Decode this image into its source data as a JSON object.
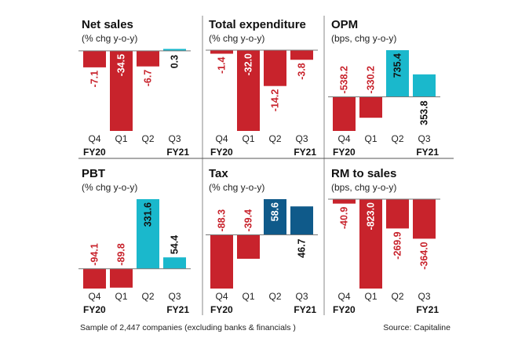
{
  "colors": {
    "negative": "#c8232c",
    "positive": "#1ab8cc",
    "tax_positive": "#0f5a8a"
  },
  "chart_data": [
    {
      "type": "bar",
      "title": "Net sales",
      "subtitle": "(% chg y-o-y)",
      "categories": [
        "Q4",
        "Q1",
        "Q2",
        "Q3"
      ],
      "groups": [
        "FY20",
        "FY21"
      ],
      "values": [
        -7.1,
        -34.5,
        -6.7,
        0.3
      ],
      "labels": [
        "-7.1",
        "-34.5",
        "-6.7",
        "0.3"
      ]
    },
    {
      "type": "bar",
      "title": "Total expenditure",
      "subtitle": "(% chg y-o-y)",
      "categories": [
        "Q4",
        "Q1",
        "Q2",
        "Q3"
      ],
      "groups": [
        "FY20",
        "FY21"
      ],
      "values": [
        -1.4,
        -32.0,
        -14.2,
        -3.8
      ],
      "labels": [
        "-1.4",
        "-32.0",
        "-14.2",
        "-3.8"
      ]
    },
    {
      "type": "bar",
      "title": "OPM",
      "subtitle": "(bps, chg y-o-y)",
      "categories": [
        "Q4",
        "Q1",
        "Q2",
        "Q3"
      ],
      "groups": [
        "FY20",
        "FY21"
      ],
      "values": [
        -538.2,
        -330.2,
        735.4,
        353.8
      ],
      "labels": [
        "-538.2",
        "-330.2",
        "735.4",
        "353.8"
      ]
    },
    {
      "type": "bar",
      "title": "PBT",
      "subtitle": "(% chg y-o-y)",
      "categories": [
        "Q4",
        "Q1",
        "Q2",
        "Q3"
      ],
      "groups": [
        "FY20",
        "FY21"
      ],
      "values": [
        -94.1,
        -89.8,
        331.6,
        54.4
      ],
      "labels": [
        "-94.1",
        "-89.8",
        "331.6",
        "54.4"
      ]
    },
    {
      "type": "bar",
      "title": "Tax",
      "subtitle": "(% chg y-o-y)",
      "categories": [
        "Q4",
        "Q1",
        "Q2",
        "Q3"
      ],
      "groups": [
        "FY20",
        "FY21"
      ],
      "values": [
        -88.3,
        -39.4,
        58.6,
        46.7
      ],
      "labels": [
        "-88.3",
        "-39.4",
        "58.6",
        "46.7"
      ],
      "positive_color": "#0f5a8a"
    },
    {
      "type": "bar",
      "title": "RM to sales",
      "subtitle": "(bps, chg y-o-y)",
      "categories": [
        "Q4",
        "Q1",
        "Q2",
        "Q3"
      ],
      "groups": [
        "FY20",
        "FY21"
      ],
      "values": [
        -40.9,
        -823.0,
        -269.9,
        -364.0
      ],
      "labels": [
        "-40.9",
        "-823.0",
        "-269.9",
        "-364.0"
      ]
    }
  ],
  "footer": {
    "note": "Sample of 2,447 companies (excluding banks & financials )",
    "source": "Source: Capitaline"
  }
}
